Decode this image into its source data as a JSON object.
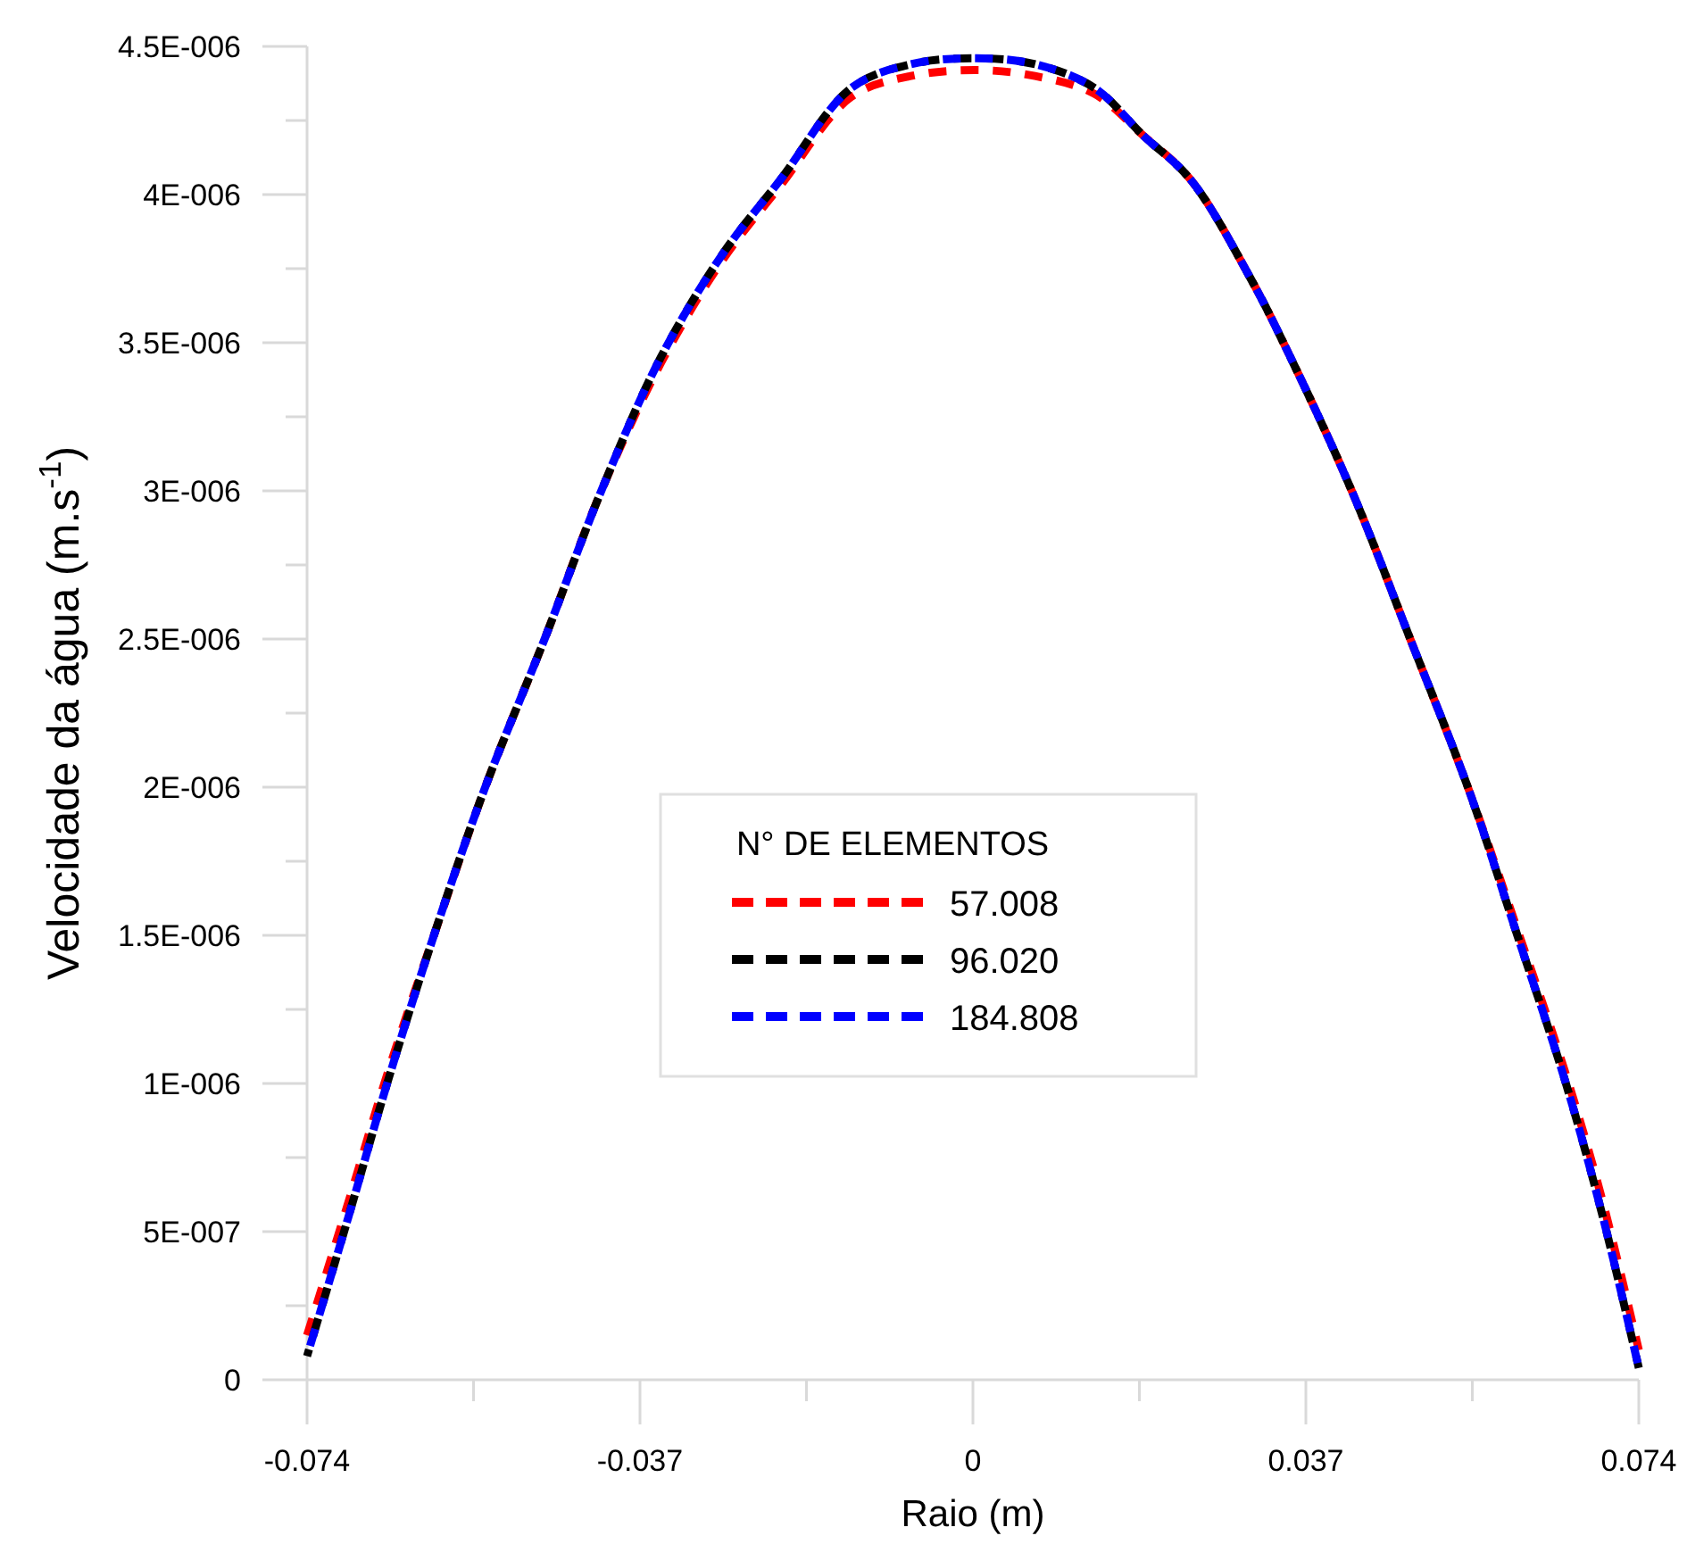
{
  "chart_data": {
    "type": "line",
    "xlabel": "Raio (m)",
    "ylabel": "Velocidade da água (m.s$^{-1}$)",
    "legend_title": "N° DE ELEMENTOS",
    "legend": "center",
    "line_style": "dashed",
    "marker": "none",
    "grid": false,
    "xlim": [
      -0.074,
      0.074
    ],
    "ylim": [
      0,
      4.5e-06
    ],
    "xticks": [
      -0.074,
      {
        "value": -0.0555,
        "label": null
      },
      -0.037,
      {
        "value": -0.0185,
        "label": null
      },
      0,
      {
        "value": 0.0185,
        "label": null
      },
      0.037,
      {
        "value": 0.0555,
        "label": null
      },
      0.074
    ],
    "yticks": [
      {
        "value": 0,
        "label": "0"
      },
      {
        "value": 2.5e-07,
        "label": null
      },
      {
        "value": 5e-07,
        "label": "5E-007"
      },
      {
        "value": 7.5e-07,
        "label": null
      },
      {
        "value": 1e-06,
        "label": "1E-006"
      },
      {
        "value": 1.25e-06,
        "label": null
      },
      {
        "value": 1.5e-06,
        "label": "1.5E-006"
      },
      {
        "value": 1.75e-06,
        "label": null
      },
      {
        "value": 2e-06,
        "label": "2E-006"
      },
      {
        "value": 2.25e-06,
        "label": null
      },
      {
        "value": 2.5e-06,
        "label": "2.5E-006"
      },
      {
        "value": 2.75e-06,
        "label": null
      },
      {
        "value": 3e-06,
        "label": "3E-006"
      },
      {
        "value": 3.25e-06,
        "label": null
      },
      {
        "value": 3.5e-06,
        "label": "3.5E-006"
      },
      {
        "value": 3.75e-06,
        "label": null
      },
      {
        "value": 4e-06,
        "label": "4E-006"
      },
      {
        "value": 4.25e-06,
        "label": null
      },
      {
        "value": 4.5e-06,
        "label": "4.5E-006"
      }
    ],
    "x": [
      -0.074,
      -0.0694,
      -0.0651,
      -0.0599,
      -0.0542,
      -0.0476,
      -0.0413,
      -0.0347,
      -0.0278,
      -0.0214,
      -0.0135,
      -0.0069,
      0.0004,
      0.0069,
      0.0135,
      0.0189,
      0.0242,
      0.0308,
      0.0353,
      0.0421,
      0.0486,
      0.055,
      0.0605,
      0.0659,
      0.07,
      0.074
    ],
    "series": [
      {
        "name": "57.008",
        "color": "#ff0000",
        "values": [
          1.5e-07,
          6e-07,
          1.03e-06,
          1.5e-06,
          2e-06,
          2.5e-06,
          3e-06,
          3.43e-06,
          3.78e-06,
          4.03e-06,
          4.33e-06,
          4.4e-06,
          4.42e-06,
          4.4e-06,
          4.34e-06,
          4.2e-06,
          4.05e-06,
          3.72e-06,
          3.45e-06,
          3e-06,
          2.5e-06,
          2e-06,
          1.52e-06,
          1.03e-06,
          6e-07,
          1e-07
        ]
      },
      {
        "name": "96.020",
        "color": "#000000",
        "values": [
          8e-08,
          5.5e-07,
          1e-06,
          1.5e-06,
          2e-06,
          2.5e-06,
          3e-06,
          3.45e-06,
          3.8e-06,
          4.05e-06,
          4.36e-06,
          4.44e-06,
          4.46e-06,
          4.44e-06,
          4.36e-06,
          4.2e-06,
          4.05e-06,
          3.72e-06,
          3.45e-06,
          3e-06,
          2.5e-06,
          2e-06,
          1.5e-06,
          1e-06,
          5.5e-07,
          4e-08
        ]
      },
      {
        "name": "184.808",
        "color": "#0000ff",
        "values": [
          8e-08,
          5.5e-07,
          1e-06,
          1.5e-06,
          2e-06,
          2.5e-06,
          3e-06,
          3.45e-06,
          3.8e-06,
          4.05e-06,
          4.36e-06,
          4.44e-06,
          4.46e-06,
          4.44e-06,
          4.36e-06,
          4.2e-06,
          4.05e-06,
          3.72e-06,
          3.45e-06,
          3e-06,
          2.5e-06,
          2e-06,
          1.5e-06,
          1e-06,
          5.5e-07,
          4e-08
        ]
      }
    ]
  }
}
